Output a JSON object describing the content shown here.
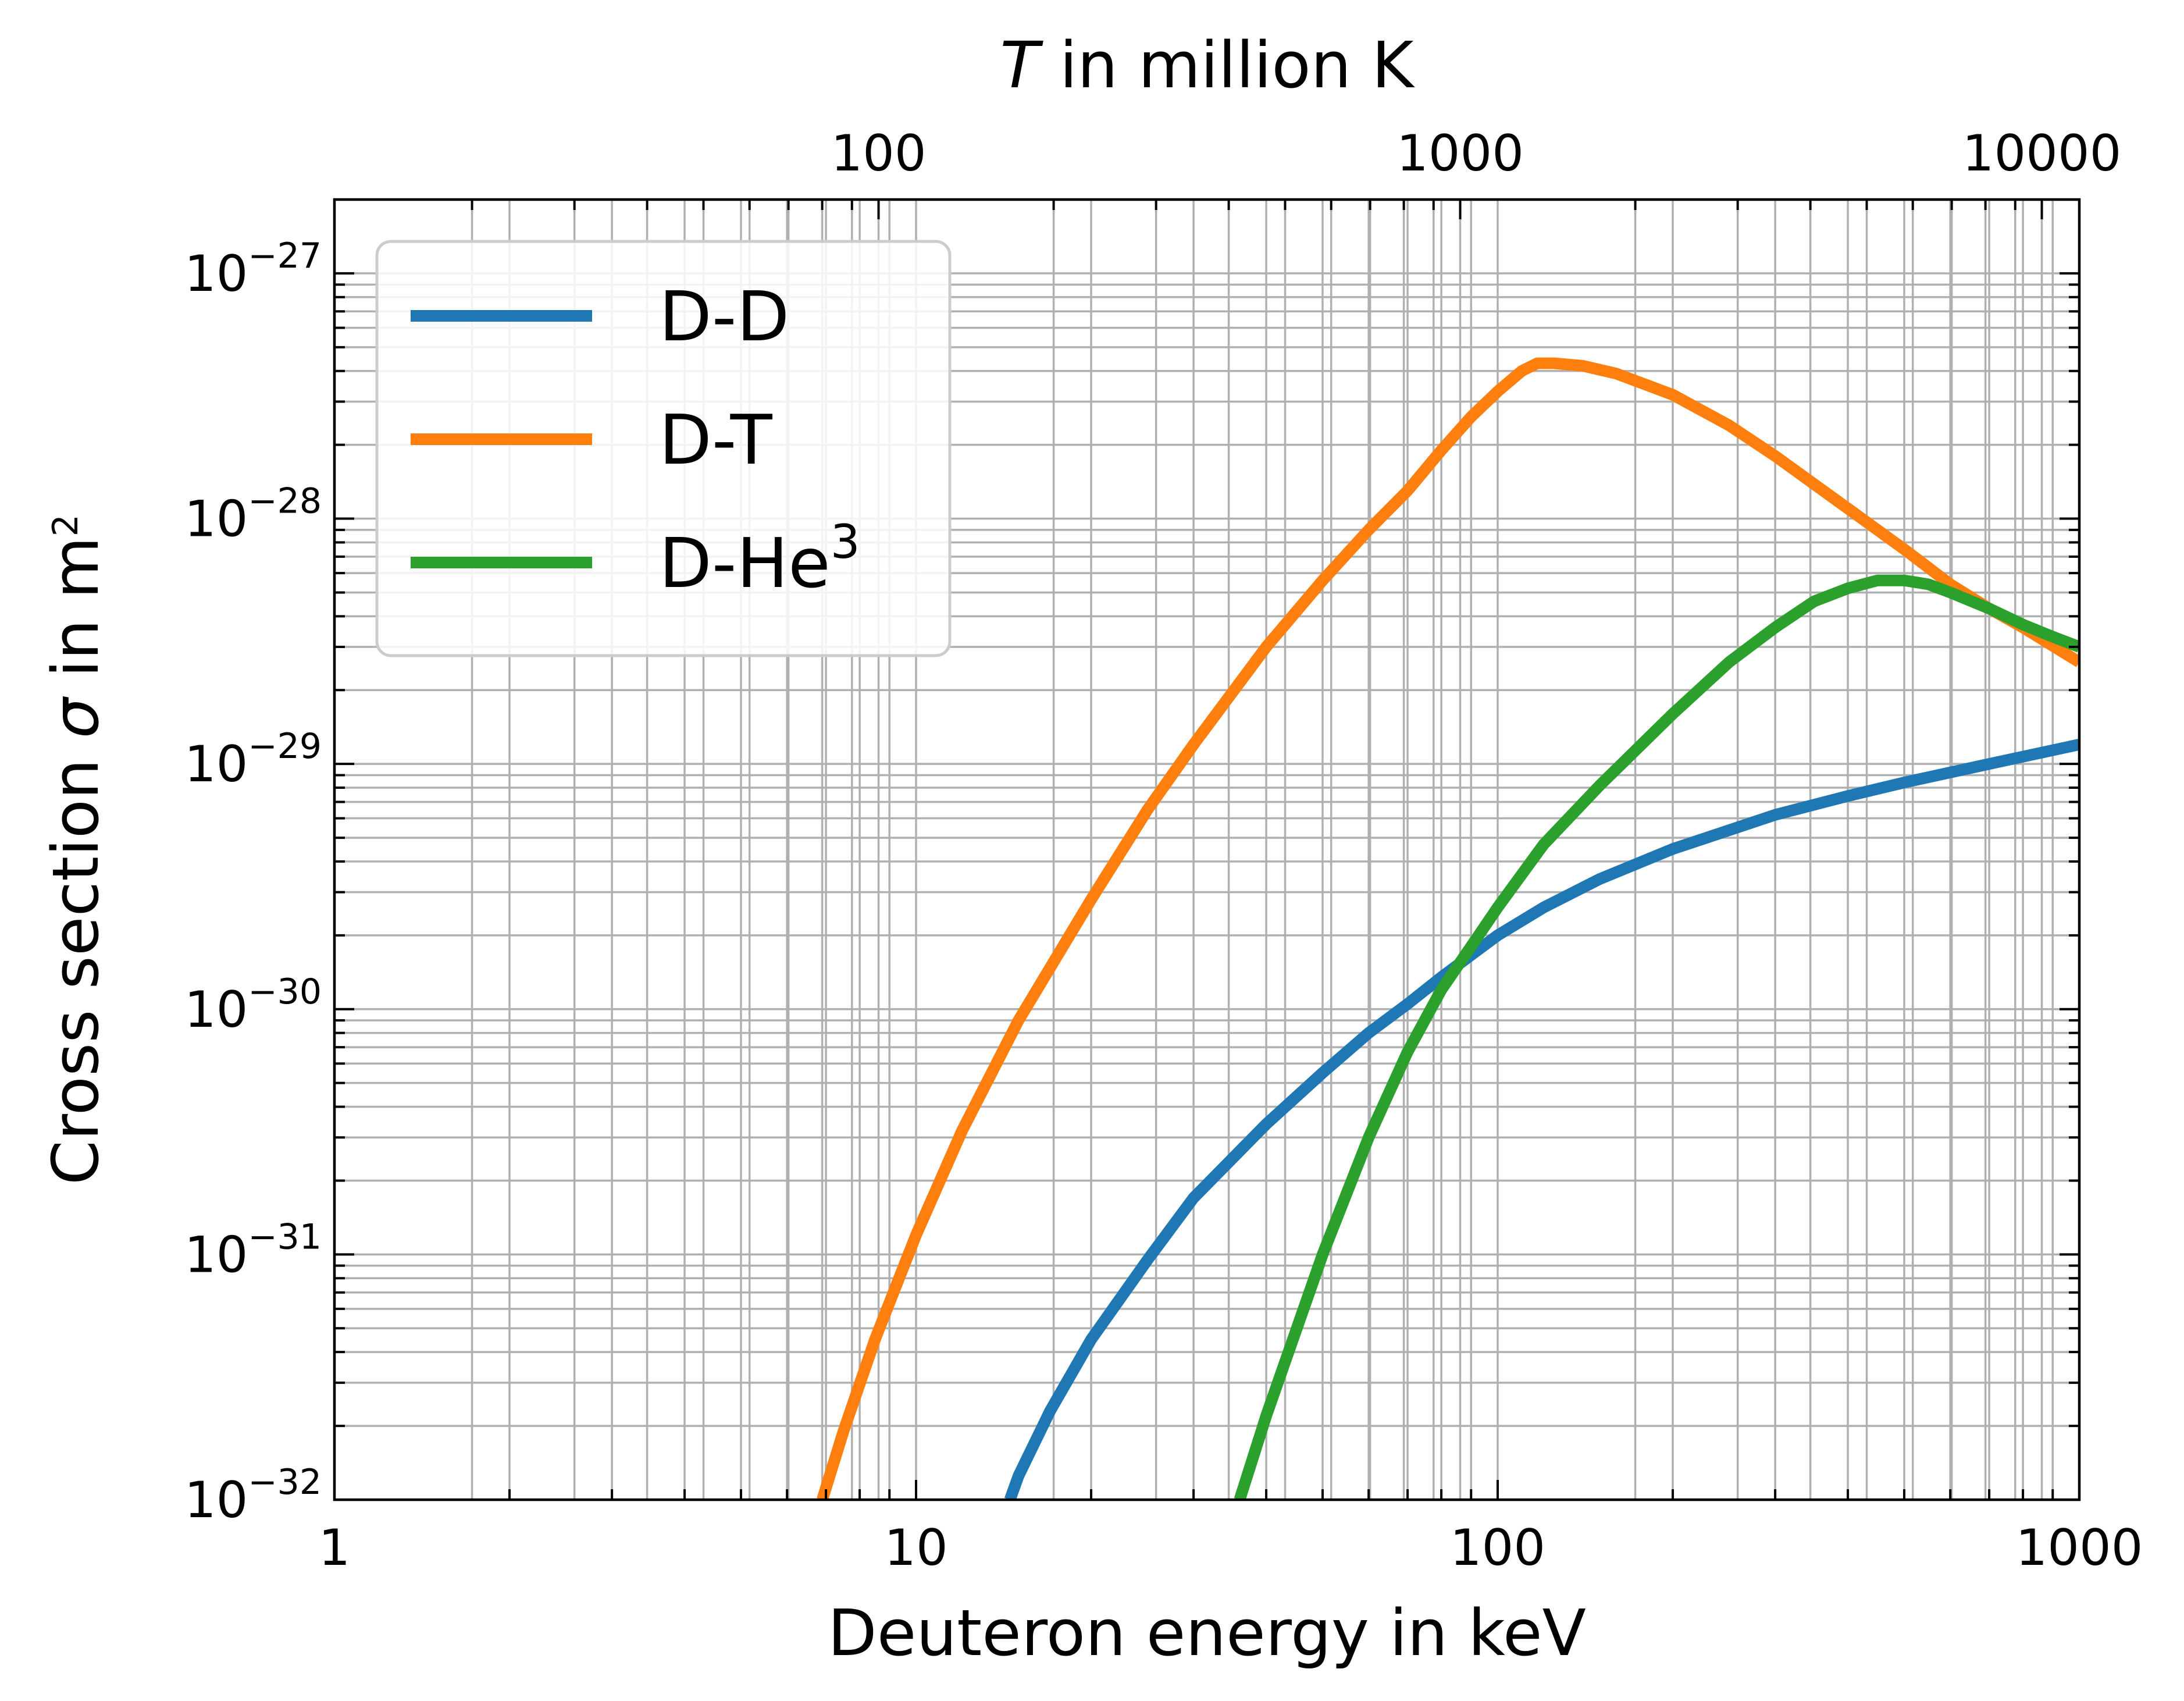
{
  "chart_data": {
    "type": "line",
    "xlabel": "Deuteron energy in keV",
    "ylabel_prefix": "Cross section ",
    "ylabel_symbol": "σ",
    "ylabel_suffix": " in m",
    "ylabel_sup": "2",
    "top_axis_label_symbol": "T",
    "top_axis_label_suffix": " in million K",
    "x_scale": "log",
    "y_scale": "log",
    "xlim": [
      1,
      1000
    ],
    "ylim": [
      1e-32,
      2e-27
    ],
    "top_xlim": [
      11.6,
      11600
    ],
    "grid": true,
    "legend_position": "upper-left",
    "x_ticks": [
      {
        "value": 1,
        "label": "1"
      },
      {
        "value": 10,
        "label": "10"
      },
      {
        "value": 100,
        "label": "100"
      },
      {
        "value": 1000,
        "label": "1000"
      }
    ],
    "top_ticks": [
      {
        "value": 100,
        "label": "100"
      },
      {
        "value": 1000,
        "label": "1000"
      },
      {
        "value": 10000,
        "label": "10000"
      }
    ],
    "y_ticks": [
      {
        "value": 1e-32,
        "base": "10",
        "exponent": "−32"
      },
      {
        "value": 1e-31,
        "base": "10",
        "exponent": "−31"
      },
      {
        "value": 1e-30,
        "base": "10",
        "exponent": "−30"
      },
      {
        "value": 1e-29,
        "base": "10",
        "exponent": "−29"
      },
      {
        "value": 1e-28,
        "base": "10",
        "exponent": "−28"
      },
      {
        "value": 1e-27,
        "base": "10",
        "exponent": "−27"
      }
    ],
    "series": [
      {
        "name": "D-D",
        "name_sup": "",
        "color": "#1f77b4",
        "points": [
          [
            14.5,
            1e-32
          ],
          [
            15,
            1.25e-32
          ],
          [
            17,
            2.3e-32
          ],
          [
            20,
            4.5e-32
          ],
          [
            25,
            9.5e-32
          ],
          [
            30,
            1.7e-31
          ],
          [
            40,
            3.4e-31
          ],
          [
            50,
            5.5e-31
          ],
          [
            60,
            8e-31
          ],
          [
            70,
            1.05e-30
          ],
          [
            80,
            1.35e-30
          ],
          [
            100,
            2e-30
          ],
          [
            120,
            2.6e-30
          ],
          [
            150,
            3.4e-30
          ],
          [
            200,
            4.5e-30
          ],
          [
            300,
            6.2e-30
          ],
          [
            400,
            7.4e-30
          ],
          [
            500,
            8.4e-30
          ],
          [
            700,
            1e-29
          ],
          [
            1000,
            1.2e-29
          ]
        ]
      },
      {
        "name": "D-T",
        "name_sup": "",
        "color": "#ff7f0e",
        "points": [
          [
            6.9,
            1e-32
          ],
          [
            7.5,
            1.9e-32
          ],
          [
            8.5,
            4.5e-32
          ],
          [
            10,
            1.2e-31
          ],
          [
            12,
            3.2e-31
          ],
          [
            15,
            9e-31
          ],
          [
            20,
            2.8e-30
          ],
          [
            25,
            6.5e-30
          ],
          [
            30,
            1.2e-29
          ],
          [
            40,
            3e-29
          ],
          [
            50,
            5.6e-29
          ],
          [
            60,
            9e-29
          ],
          [
            70,
            1.3e-28
          ],
          [
            80,
            1.9e-28
          ],
          [
            90,
            2.6e-28
          ],
          [
            100,
            3.3e-28
          ],
          [
            110,
            4e-28
          ],
          [
            117,
            4.3e-28
          ],
          [
            125,
            4.3e-28
          ],
          [
            140,
            4.2e-28
          ],
          [
            160,
            3.9e-28
          ],
          [
            200,
            3.2e-28
          ],
          [
            250,
            2.4e-28
          ],
          [
            300,
            1.8e-28
          ],
          [
            400,
            1.1e-28
          ],
          [
            500,
            7.5e-29
          ],
          [
            600,
            5.4e-29
          ],
          [
            700,
            4.3e-29
          ],
          [
            800,
            3.6e-29
          ],
          [
            1000,
            2.6e-29
          ]
        ]
      },
      {
        "name": "D-He",
        "name_sup": "3",
        "color": "#2ca02c",
        "points": [
          [
            36,
            1e-32
          ],
          [
            40,
            2.2e-32
          ],
          [
            50,
            1e-31
          ],
          [
            60,
            3e-31
          ],
          [
            70,
            6.7e-31
          ],
          [
            80,
            1.2e-30
          ],
          [
            90,
            1.8e-30
          ],
          [
            100,
            2.6e-30
          ],
          [
            120,
            4.7e-30
          ],
          [
            150,
            8.2e-30
          ],
          [
            200,
            1.6e-29
          ],
          [
            250,
            2.6e-29
          ],
          [
            300,
            3.6e-29
          ],
          [
            350,
            4.6e-29
          ],
          [
            400,
            5.2e-29
          ],
          [
            450,
            5.6e-29
          ],
          [
            500,
            5.6e-29
          ],
          [
            550,
            5.4e-29
          ],
          [
            600,
            5e-29
          ],
          [
            700,
            4.3e-29
          ],
          [
            800,
            3.7e-29
          ],
          [
            900,
            3.3e-29
          ],
          [
            1000,
            3e-29
          ]
        ]
      }
    ]
  }
}
